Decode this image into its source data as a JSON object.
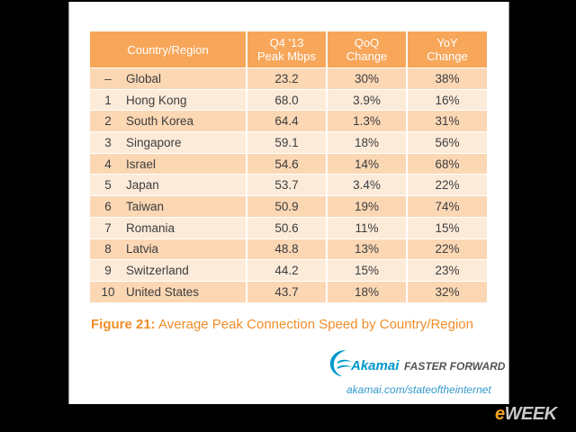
{
  "table": {
    "headers": {
      "country_region": "Country/Region",
      "peak_line1": "Q4 '13",
      "peak_line2": "Peak Mbps",
      "qoq_line1": "QoQ",
      "qoq_line2": "Change",
      "yoy_line1": "YoY",
      "yoy_line2": "Change"
    },
    "rows": [
      {
        "rank": "–",
        "country": "Global",
        "peak": "23.2",
        "qoq": "30%",
        "yoy": "38%"
      },
      {
        "rank": "1",
        "country": "Hong Kong",
        "peak": "68.0",
        "qoq": "3.9%",
        "yoy": "16%"
      },
      {
        "rank": "2",
        "country": "South Korea",
        "peak": "64.4",
        "qoq": "1.3%",
        "yoy": "31%"
      },
      {
        "rank": "3",
        "country": "Singapore",
        "peak": "59.1",
        "qoq": "18%",
        "yoy": "56%"
      },
      {
        "rank": "4",
        "country": "Israel",
        "peak": "54.6",
        "qoq": "14%",
        "yoy": "68%"
      },
      {
        "rank": "5",
        "country": "Japan",
        "peak": "53.7",
        "qoq": "3.4%",
        "yoy": "22%"
      },
      {
        "rank": "6",
        "country": "Taiwan",
        "peak": "50.9",
        "qoq": "19%",
        "yoy": "74%"
      },
      {
        "rank": "7",
        "country": "Romania",
        "peak": "50.6",
        "qoq": "11%",
        "yoy": "15%"
      },
      {
        "rank": "8",
        "country": "Latvia",
        "peak": "48.8",
        "qoq": "13%",
        "yoy": "22%"
      },
      {
        "rank": "9",
        "country": "Switzerland",
        "peak": "44.2",
        "qoq": "15%",
        "yoy": "23%"
      },
      {
        "rank": "10",
        "country": "United States",
        "peak": "43.7",
        "qoq": "18%",
        "yoy": "32%"
      }
    ]
  },
  "caption": {
    "figure_label": "Figure 21:",
    "text": " Average Peak Connection Speed by Country/Region"
  },
  "branding": {
    "logo_icon": "akamai-swoosh-icon",
    "brand_name": "Akamai",
    "tagline": "FASTER FORWARD",
    "url": "akamai.com/stateoftheinternet"
  },
  "watermark": {
    "e": "e",
    "rest": "WEEK"
  },
  "colors": {
    "header_orange": "#f7a65a",
    "row_dark": "#fbd7b4",
    "row_light": "#fdebd9",
    "caption_orange": "#f08d28",
    "akamai_blue": "#0099cc"
  }
}
